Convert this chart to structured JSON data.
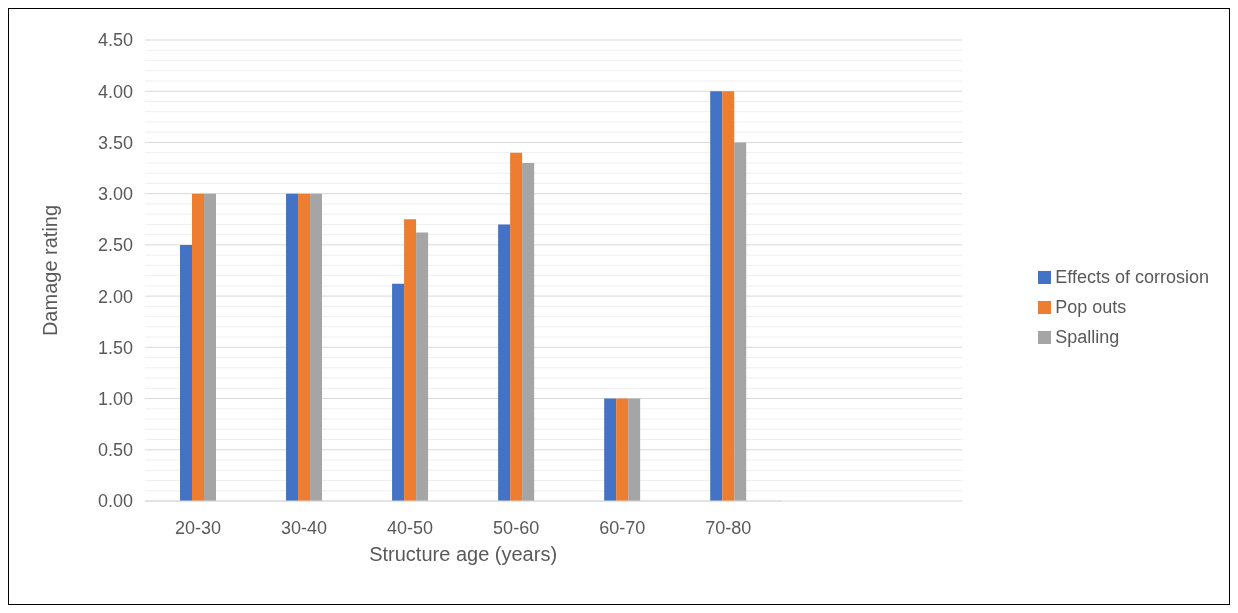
{
  "chart_data": {
    "type": "bar",
    "xlabel": "Structure age (years)",
    "ylabel": "Damage rating",
    "categories": [
      "20-30",
      "30-40",
      "40-50",
      "50-60",
      "60-70",
      "70-80"
    ],
    "series": [
      {
        "name": "Effects of corrosion",
        "color": "#4472c4",
        "values": [
          2.5,
          3,
          2.12,
          2.7,
          1,
          4
        ]
      },
      {
        "name": "Pop outs",
        "color": "#ed7d31",
        "values": [
          3,
          3,
          2.75,
          3.4,
          1,
          4
        ]
      },
      {
        "name": "Spalling",
        "color": "#a5a5a5",
        "values": [
          3,
          3,
          2.62,
          3.3,
          1,
          3.5
        ]
      }
    ],
    "ylim": [
      0,
      4.5
    ],
    "yticks": [
      {
        "value": 0,
        "label": "0.00"
      },
      {
        "value": 0.1,
        "label": null
      },
      {
        "value": 0.2,
        "label": null
      },
      {
        "value": 0.3,
        "label": null
      },
      {
        "value": 0.4,
        "label": null
      },
      {
        "value": 0.5,
        "label": "0.50"
      },
      {
        "value": 0.6,
        "label": null
      },
      {
        "value": 0.7,
        "label": null
      },
      {
        "value": 0.8,
        "label": null
      },
      {
        "value": 0.9,
        "label": null
      },
      {
        "value": 1,
        "label": "1.00"
      },
      {
        "value": 1.1,
        "label": null
      },
      {
        "value": 1.2,
        "label": null
      },
      {
        "value": 1.3,
        "label": null
      },
      {
        "value": 1.4,
        "label": null
      },
      {
        "value": 1.5,
        "label": "1.50"
      },
      {
        "value": 1.6,
        "label": null
      },
      {
        "value": 1.7,
        "label": null
      },
      {
        "value": 1.8,
        "label": null
      },
      {
        "value": 1.9,
        "label": null
      },
      {
        "value": 2,
        "label": "2.00"
      },
      {
        "value": 2.1,
        "label": null
      },
      {
        "value": 2.2,
        "label": null
      },
      {
        "value": 2.3,
        "label": null
      },
      {
        "value": 2.4,
        "label": null
      },
      {
        "value": 2.5,
        "label": "2.50"
      },
      {
        "value": 2.6,
        "label": null
      },
      {
        "value": 2.7,
        "label": null
      },
      {
        "value": 2.8,
        "label": null
      },
      {
        "value": 2.9,
        "label": null
      },
      {
        "value": 3,
        "label": "3.00"
      },
      {
        "value": 3.1,
        "label": null
      },
      {
        "value": 3.2,
        "label": null
      },
      {
        "value": 3.3,
        "label": null
      },
      {
        "value": 3.4,
        "label": null
      },
      {
        "value": 3.5,
        "label": "3.50"
      },
      {
        "value": 3.6,
        "label": null
      },
      {
        "value": 3.7,
        "label": null
      },
      {
        "value": 3.8,
        "label": null
      },
      {
        "value": 3.9,
        "label": null
      },
      {
        "value": 4,
        "label": "4.00"
      },
      {
        "value": 4.1,
        "label": null
      },
      {
        "value": 4.2,
        "label": null
      },
      {
        "value": 4.3,
        "label": null
      },
      {
        "value": 4.4,
        "label": null
      },
      {
        "value": 4.5,
        "label": "4.50"
      }
    ],
    "grid": "y",
    "legend": "right"
  }
}
